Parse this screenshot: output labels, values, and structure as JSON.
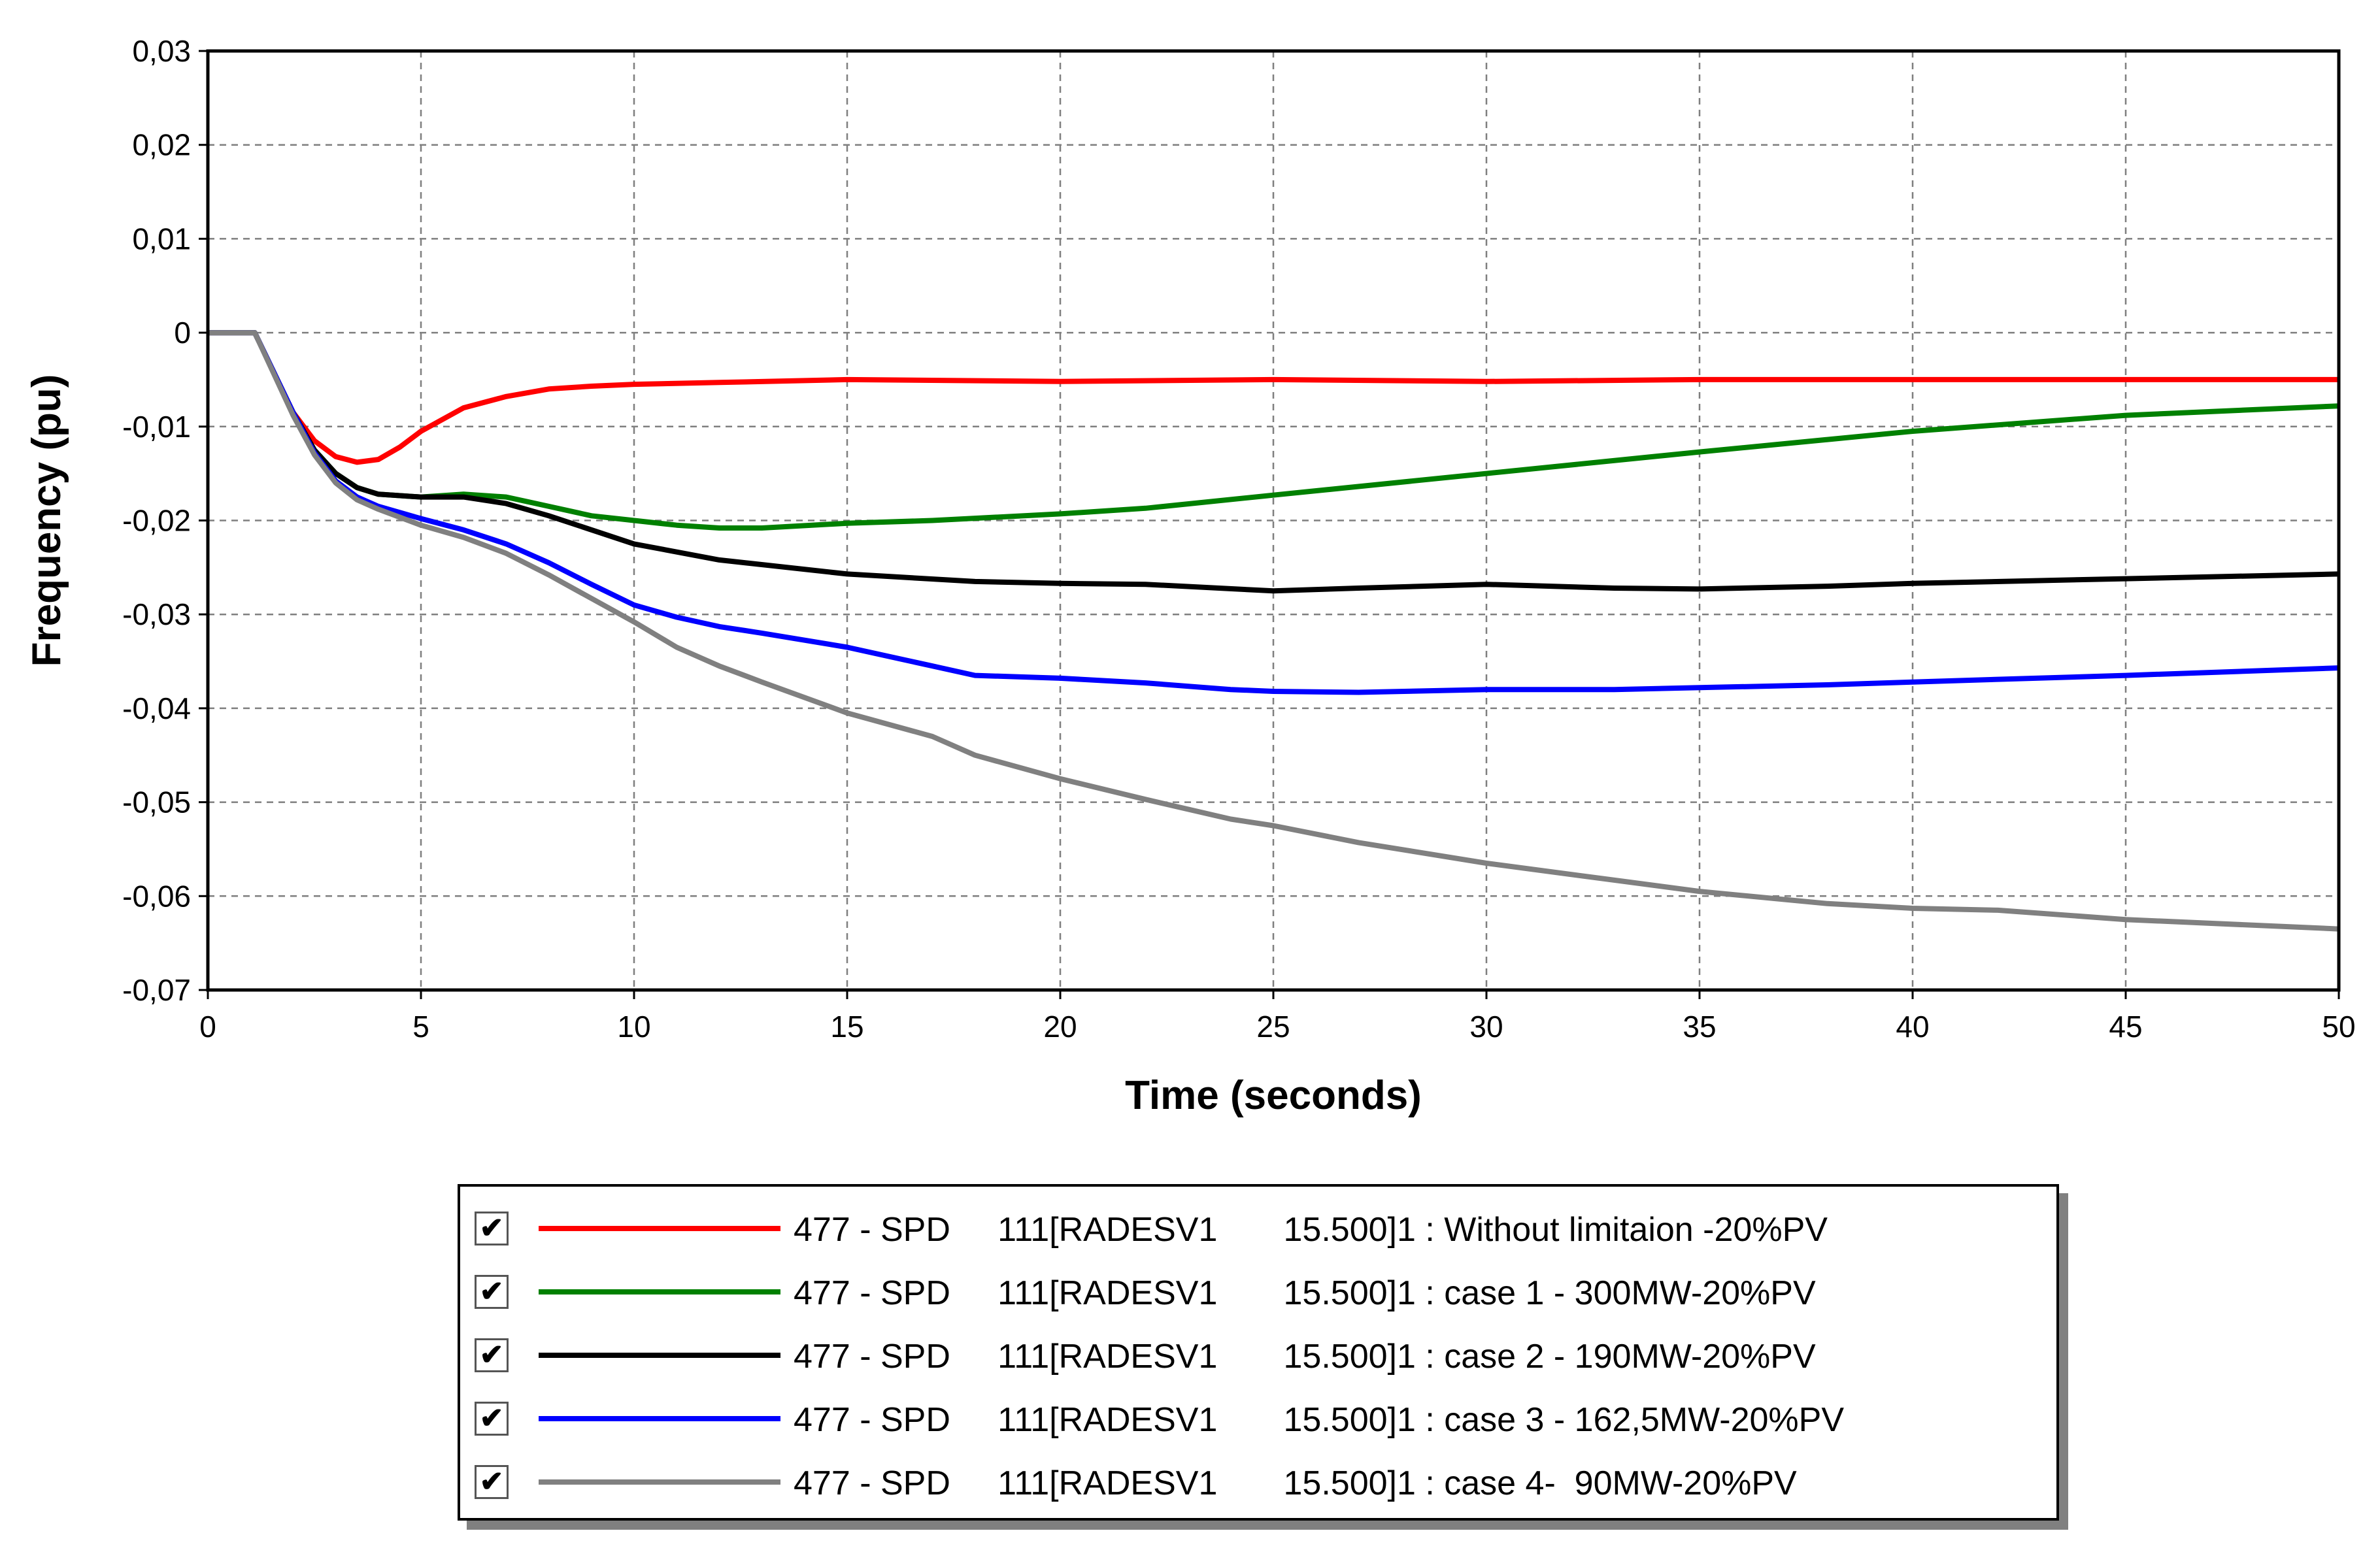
{
  "chart_data": {
    "type": "line",
    "title": "",
    "xlabel": "Time (seconds)",
    "ylabel": "Frequency (pu)",
    "xlim": [
      0,
      50
    ],
    "ylim": [
      -0.07,
      0.03
    ],
    "grid": true,
    "x_ticks": [
      0,
      5,
      10,
      15,
      20,
      25,
      30,
      35,
      40,
      45,
      50
    ],
    "x_tick_labels": [
      "0",
      "5",
      "10",
      "15",
      "20",
      "25",
      "30",
      "35",
      "40",
      "45",
      "50"
    ],
    "y_ticks": [
      0.03,
      0.02,
      0.01,
      0,
      -0.01,
      -0.02,
      -0.03,
      -0.04,
      -0.05,
      -0.06,
      -0.07
    ],
    "y_tick_labels": [
      "0,03",
      "0,02",
      "0,01",
      "0",
      "-0,01",
      "-0,02",
      "-0,03",
      "-0,04",
      "-0,05",
      "-0,06",
      "-0,07"
    ],
    "legend_position": "bottom",
    "series": [
      {
        "name": "477 - SPD     111[RADESV1       15.500]1 : Without limitaion -20%PV",
        "color": "#ff0000",
        "x": [
          0,
          1.1,
          2,
          2.5,
          3,
          3.5,
          4,
          4.5,
          5,
          6,
          7,
          8,
          9,
          10,
          12,
          15,
          20,
          25,
          30,
          35,
          40,
          45,
          50
        ],
        "y": [
          0,
          0,
          -0.0085,
          -0.0115,
          -0.0132,
          -0.0138,
          -0.0135,
          -0.0122,
          -0.0105,
          -0.008,
          -0.0068,
          -0.006,
          -0.0057,
          -0.0055,
          -0.0053,
          -0.005,
          -0.0052,
          -0.005,
          -0.0052,
          -0.005,
          -0.005,
          -0.005,
          -0.005
        ]
      },
      {
        "name": "477 - SPD     111[RADESV1       15.500]1 : case 1 - 300MW-20%PV",
        "color": "#008000",
        "x": [
          0,
          1.1,
          2,
          2.5,
          3,
          3.5,
          4,
          5,
          6,
          7,
          8,
          9,
          10,
          11,
          12,
          13,
          15,
          17,
          20,
          22,
          25,
          30,
          35,
          40,
          45,
          50
        ],
        "y": [
          0,
          0,
          -0.0085,
          -0.0125,
          -0.015,
          -0.0165,
          -0.0172,
          -0.0175,
          -0.0172,
          -0.0175,
          -0.0185,
          -0.0195,
          -0.02,
          -0.0205,
          -0.0208,
          -0.0208,
          -0.0203,
          -0.02,
          -0.0193,
          -0.0187,
          -0.0173,
          -0.015,
          -0.0127,
          -0.0105,
          -0.0088,
          -0.0078
        ]
      },
      {
        "name": "477 - SPD     111[RADESV1       15.500]1 : case 2 - 190MW-20%PV",
        "color": "#000000",
        "x": [
          0,
          1.1,
          2,
          2.5,
          3,
          3.5,
          4,
          5,
          6,
          7,
          8,
          10,
          12,
          15,
          18,
          20,
          22,
          25,
          27,
          30,
          33,
          35,
          38,
          40,
          45,
          50
        ],
        "y": [
          0,
          0,
          -0.0085,
          -0.0125,
          -0.015,
          -0.0165,
          -0.0172,
          -0.0175,
          -0.0175,
          -0.0182,
          -0.0195,
          -0.0225,
          -0.0242,
          -0.0257,
          -0.0265,
          -0.0267,
          -0.0268,
          -0.0275,
          -0.0272,
          -0.0268,
          -0.0272,
          -0.0273,
          -0.027,
          -0.0267,
          -0.0262,
          -0.0257
        ]
      },
      {
        "name": "477 - SPD     111[RADESV1       15.500]1 : case 3 - 162,5MW-20%PV",
        "color": "#0000ff",
        "x": [
          0,
          1.1,
          2,
          2.5,
          3,
          3.5,
          4,
          5,
          6,
          7,
          8,
          9,
          10,
          11,
          12,
          13,
          15,
          17,
          18,
          20,
          22,
          24,
          25,
          27,
          30,
          33,
          35,
          38,
          40,
          45,
          50
        ],
        "y": [
          0,
          0,
          -0.0085,
          -0.0128,
          -0.0158,
          -0.0175,
          -0.0185,
          -0.0198,
          -0.021,
          -0.0225,
          -0.0245,
          -0.0268,
          -0.029,
          -0.0303,
          -0.0313,
          -0.032,
          -0.0335,
          -0.0355,
          -0.0365,
          -0.0368,
          -0.0373,
          -0.038,
          -0.0382,
          -0.0383,
          -0.038,
          -0.038,
          -0.0378,
          -0.0375,
          -0.0372,
          -0.0365,
          -0.0357
        ]
      },
      {
        "name": "477 - SPD     111[RADESV1       15.500]1 : case 4-  90MW-20%PV",
        "color": "#808080",
        "x": [
          0,
          1.1,
          2,
          2.5,
          3,
          3.5,
          4,
          5,
          6,
          7,
          8,
          9,
          10,
          11,
          12,
          13,
          15,
          17,
          18,
          20,
          22,
          24,
          25,
          27,
          30,
          33,
          35,
          38,
          40,
          42,
          45,
          50
        ],
        "y": [
          0,
          0,
          -0.0088,
          -0.013,
          -0.016,
          -0.0178,
          -0.0188,
          -0.0205,
          -0.0218,
          -0.0235,
          -0.0258,
          -0.0283,
          -0.0308,
          -0.0335,
          -0.0355,
          -0.0372,
          -0.0405,
          -0.043,
          -0.045,
          -0.0475,
          -0.0497,
          -0.0518,
          -0.0525,
          -0.0543,
          -0.0565,
          -0.0583,
          -0.0595,
          -0.0608,
          -0.0613,
          -0.0615,
          -0.0625,
          -0.0635
        ]
      }
    ]
  }
}
